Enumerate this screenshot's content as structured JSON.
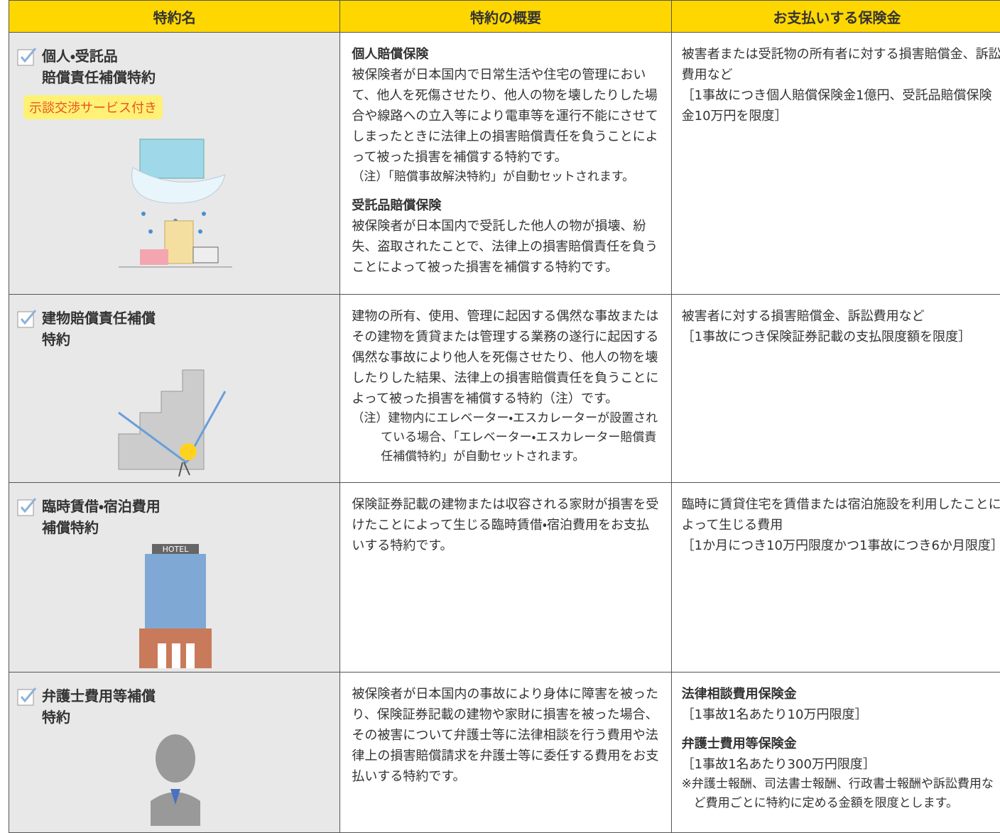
{
  "table": {
    "header": [
      "特約名",
      "特約の概要",
      "お支払いする保険金"
    ],
    "rows": [
      {
        "name": [
          "個人・受託品",
          "賠償責任補償特約"
        ],
        "badge": "示談交渉サービス付き",
        "overview": [
          {
            "heading": "個人賠償保険",
            "text": "被保険者が日本国内で日常生活や住宅の管理において、他人を死傷させたり、他人の物を壊したりした場合や線路への立入等により電車等を運行不能にさせてしまったときに法律上の損害賠償責任を負うことによって被った損害を補償する特約です。",
            "note": "（注）「賠償事故解決特約」が自動セットされます。"
          },
          {
            "heading": "受託品賠償保険",
            "text": "被保険者が日本国内で受託した他人の物が損壊、紛失、盗取されたことで、法律上の損害賠償責任を負うことによって被った損害を補償する特約です。"
          }
        ],
        "payment": [
          "被害者または受託物の所有者に対する損害賠償金、訴訟費用など",
          "［1事故につき個人賠償保険金1億円、受託品賠償保険金10万円を限度］"
        ]
      },
      {
        "name": [
          "建物賠償責任補償",
          "特約"
        ],
        "overview": [
          {
            "text": "建物の所有、使用、管理に起因する偶然な事故またはその建物を賃貸または管理する業務の遂行に起因する偶然な事故により他人を死傷させたり、他人の物を壊したりした結果、法律上の損害賠償責任を負うことによって被った損害を補償する特約（注）です。",
            "note": "（注）建物内にエレベーター・エスカレーターが設置されている場合、「エレベーター・エスカレーター賠償責任補償特約」が自動セットされます。"
          }
        ],
        "payment": [
          "被害者に対する損害賠償金、訴訟費用など",
          "［1事故につき保険証券記載の支払限度額を限度］"
        ]
      },
      {
        "name": [
          "臨時賃借・宿泊費用",
          "補償特約"
        ],
        "illustration_label": "HOTEL",
        "overview": [
          {
            "text": "保険証券記載の建物または収容される家財が損害を受けたことによって生じる臨時賃借・宿泊費用をお支払いする特約です。"
          }
        ],
        "payment": [
          "臨時に賃貸住宅を賃借または宿泊施設を利用したことによって生じる費用",
          "［1か月につき10万円限度かつ1事故につき6か月限度］"
        ]
      },
      {
        "name": [
          "弁護士費用等補償",
          "特約"
        ],
        "overview": [
          {
            "text": "被保険者が日本国内の事故により身体に障害を被ったり、保険証券記載の建物や家財に損害を被った場合、その被害について弁護士等に法律相談を行う費用や法律上の損害賠償請求を弁護士等に委任する費用をお支払いする特約です。"
          }
        ],
        "payment_blocks": [
          {
            "heading": "法律相談費用保険金",
            "text": "［1事故1名あたり10万円限度］"
          },
          {
            "heading": "弁護士費用等保険金",
            "text": "［1事故1名あたり300万円限度］",
            "note": "※弁護士報酬、司法書士報酬、行政書士報酬や訴訟費用など費用ごとに特約に定める金額を限度とします。"
          }
        ]
      }
    ]
  }
}
